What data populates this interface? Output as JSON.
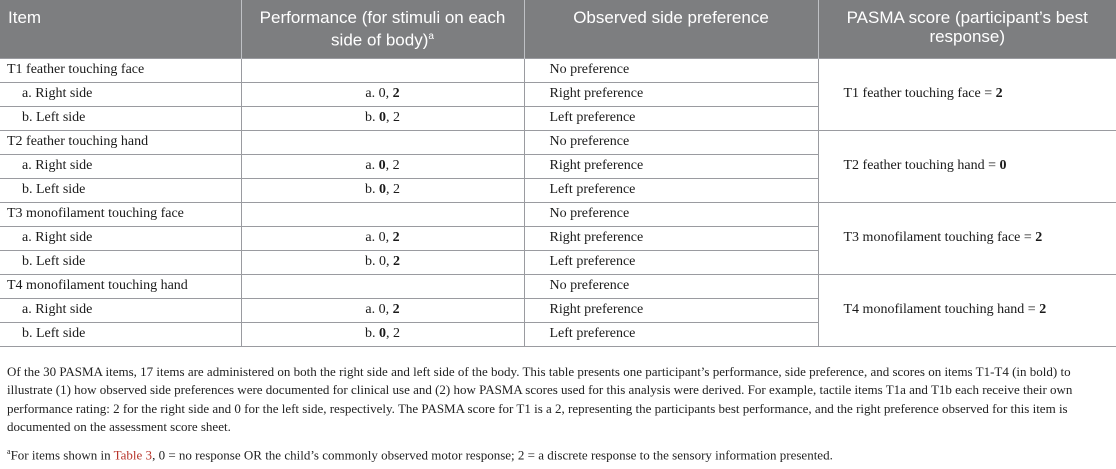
{
  "headers": {
    "item": "Item",
    "performance": "Performance (for stimuli on each side of body)",
    "performance_sup": "a",
    "side_pref": "Observed side preference",
    "pasma": "PASMA score (participant’s best response)"
  },
  "groups": [
    {
      "title": "T1 feather touching face",
      "no_pref": "No preference",
      "right_label": "a. Right side",
      "right_perf": {
        "prefix": "a. ",
        "v1": "0",
        "v1_bold": false,
        "v2": "2",
        "v2_bold": true
      },
      "right_pref": "Right preference",
      "left_label": "b. Left side",
      "left_perf": {
        "prefix": "b. ",
        "v1": "0",
        "v1_bold": true,
        "v2": "2",
        "v2_bold": false
      },
      "left_pref": "Left preference",
      "score_text": "T1 feather touching face = ",
      "score_value": "2"
    },
    {
      "title": "T2 feather touching hand",
      "no_pref": "No preference",
      "right_label": "a. Right side",
      "right_perf": {
        "prefix": "a. ",
        "v1": "0",
        "v1_bold": true,
        "v2": "2",
        "v2_bold": false
      },
      "right_pref": "Right preference",
      "left_label": "b. Left side",
      "left_perf": {
        "prefix": "b. ",
        "v1": "0",
        "v1_bold": true,
        "v2": "2",
        "v2_bold": false
      },
      "left_pref": "Left preference",
      "score_text": "T2 feather touching hand = ",
      "score_value": "0"
    },
    {
      "title": "T3 monofilament touching face",
      "no_pref": "No preference",
      "right_label": "a. Right side",
      "right_perf": {
        "prefix": "a. ",
        "v1": "0",
        "v1_bold": false,
        "v2": "2",
        "v2_bold": true
      },
      "right_pref": "Right preference",
      "left_label": "b. Left side",
      "left_perf": {
        "prefix": "b. ",
        "v1": "0",
        "v1_bold": false,
        "v2": "2",
        "v2_bold": true
      },
      "left_pref": "Left preference",
      "score_text": "T3 monofilament touching face = ",
      "score_value": "2"
    },
    {
      "title": "T4 monofilament touching hand",
      "no_pref": "No preference",
      "right_label": "a. Right side",
      "right_perf": {
        "prefix": "a. ",
        "v1": "0",
        "v1_bold": false,
        "v2": "2",
        "v2_bold": true
      },
      "right_pref": "Right preference",
      "left_label": "b. Left side",
      "left_perf": {
        "prefix": "b. ",
        "v1": "0",
        "v1_bold": true,
        "v2": "2",
        "v2_bold": false
      },
      "left_pref": "Left preference",
      "score_text": "T4 monofilament touching hand = ",
      "score_value": "2"
    }
  ],
  "caption": "Of the 30 PASMA items, 17 items are administered on both the right side and left side of the body. This table presents one participant’s performance, side preference, and scores on items T1-T4 (in bold) to illustrate (1) how observed side preferences were documented for clinical use and (2) how PASMA scores used for this analysis were derived. For example, tactile items T1a and T1b each receive their own performance rating: 2 for the right side and 0 for the left side, respectively. The PASMA score for T1 is a 2, representing the participants best performance, and the right preference observed for this item is documented on the assessment score sheet.",
  "footnote": {
    "marker": "a",
    "before": "For items shown in ",
    "link": "Table 3",
    "after": ", 0 = no response OR the child’s commonly observed motor response; 2 = a discrete response to the sensory information presented."
  },
  "colors": {
    "header_bg": "#7d7e80",
    "header_text": "#ffffff",
    "link": "#b7342a",
    "border": "#9a9ba0"
  }
}
